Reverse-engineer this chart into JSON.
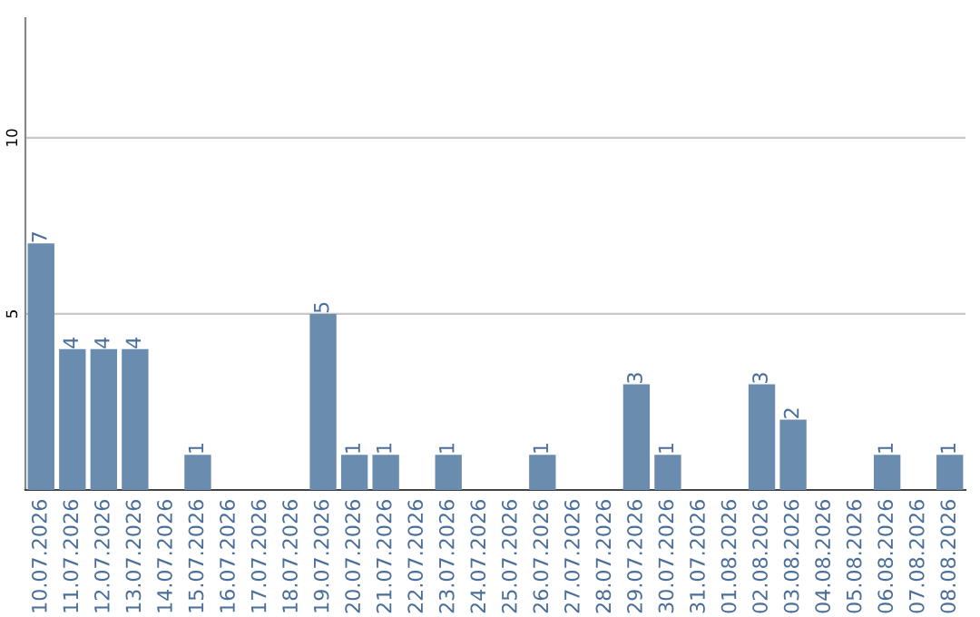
{
  "chart_data": {
    "type": "bar",
    "categories": [
      "10.07.2026",
      "11.07.2026",
      "12.07.2026",
      "13.07.2026",
      "14.07.2026",
      "15.07.2026",
      "16.07.2026",
      "17.07.2026",
      "18.07.2026",
      "19.07.2026",
      "20.07.2026",
      "21.07.2026",
      "22.07.2026",
      "23.07.2026",
      "24.07.2026",
      "25.07.2026",
      "26.07.2026",
      "27.07.2026",
      "28.07.2026",
      "29.07.2026",
      "30.07.2026",
      "31.07.2026",
      "01.08.2026",
      "02.08.2026",
      "03.08.2026",
      "04.08.2026",
      "05.08.2026",
      "06.08.2026",
      "07.08.2026",
      "08.08.2026"
    ],
    "values": [
      7,
      4,
      4,
      4,
      0,
      1,
      0,
      0,
      0,
      5,
      1,
      1,
      0,
      1,
      0,
      0,
      1,
      0,
      0,
      3,
      1,
      0,
      0,
      3,
      2,
      0,
      0,
      1,
      0,
      1
    ],
    "value_labels": [
      "7",
      "4",
      "4",
      "4",
      null,
      "1",
      null,
      null,
      null,
      "5",
      "1",
      "1",
      null,
      "1",
      null,
      null,
      "1",
      null,
      null,
      "3",
      "1",
      null,
      null,
      "3",
      "2",
      null,
      null,
      "1",
      null,
      "1"
    ],
    "color": "#6a8caf",
    "ylim": [
      0,
      13.4
    ],
    "yticks": [
      5,
      10
    ],
    "grid": "y"
  }
}
